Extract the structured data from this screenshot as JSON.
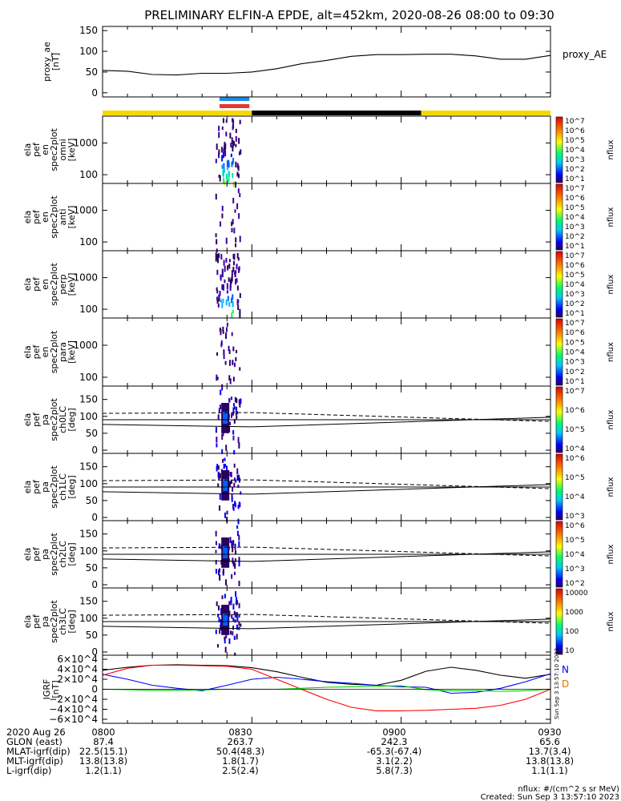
{
  "chart_data": [
    {
      "title": "PRELIMINARY ELFIN-A EPDE, alt=452km, 2020-08-26 08:00 to 09:30",
      "type": "line",
      "panels": [
        {
          "id": "proxy_ae",
          "type": "line",
          "ylabel": [
            "proxy_ae",
            "[nT]"
          ],
          "ylim": [
            -10,
            160
          ],
          "yticks": [
            "0",
            "50",
            "100",
            "150"
          ],
          "series": [
            {
              "name": "proxy_AE",
              "x_min": [
                0,
                5,
                10,
                15,
                20,
                25,
                30,
                35,
                40,
                45,
                50,
                55,
                60,
                65,
                70,
                75,
                80,
                85,
                90
              ],
              "y": [
                54,
                52,
                44,
                43,
                47,
                47,
                50,
                58,
                70,
                78,
                88,
                92,
                92,
                93,
                93,
                89,
                81,
                81,
                90
              ]
            }
          ]
        },
        {
          "id": "en_spec2plot_omni",
          "type": "heatmap",
          "ylabel": [
            "ela",
            "pef",
            "en",
            "spec2plot",
            "omni",
            "[keV]"
          ],
          "yticks": [
            "100",
            "1000"
          ],
          "colorbar": {
            "label": "nflux",
            "ticks": [
              "10^7",
              "10^6",
              "10^5",
              "10^4",
              "10^3",
              "10^2",
              "10^1"
            ]
          },
          "active_window_min": [
            22,
            26
          ]
        },
        {
          "id": "en_spec2plot_anti",
          "type": "heatmap",
          "ylabel": [
            "ela",
            "pef",
            "en",
            "spec2plot",
            "anti",
            "[keV]"
          ],
          "yticks": [
            "100",
            "1000"
          ],
          "colorbar": {
            "label": "nflux",
            "ticks": [
              "10^7",
              "10^6",
              "10^5",
              "10^4",
              "10^3",
              "10^2",
              "10^1"
            ]
          },
          "active_window_min": [
            22,
            26
          ]
        },
        {
          "id": "en_spec2plot_perp",
          "type": "heatmap",
          "ylabel": [
            "ela",
            "pef",
            "en",
            "spec2plot",
            "perp",
            "[keV]"
          ],
          "yticks": [
            "100",
            "1000"
          ],
          "colorbar": {
            "label": "nflux",
            "ticks": [
              "10^7",
              "10^6",
              "10^5",
              "10^4",
              "10^3",
              "10^2",
              "10^1"
            ]
          },
          "active_window_min": [
            22,
            26
          ]
        },
        {
          "id": "en_spec2plot_para",
          "type": "heatmap",
          "ylabel": [
            "ela",
            "pef",
            "en",
            "spec2plot",
            "para",
            "[keV]"
          ],
          "yticks": [
            "100",
            "1000"
          ],
          "colorbar": {
            "label": "nflux",
            "ticks": [
              "10^7",
              "10^6",
              "10^5",
              "10^4",
              "10^3",
              "10^2",
              "10^1"
            ]
          },
          "active_window_min": [
            22,
            26
          ]
        },
        {
          "id": "pa_spec2plot_ch0LC",
          "type": "heatmap",
          "ylabel": [
            "ela",
            "pef",
            "pa",
            "spec2plot",
            "ch0LC",
            "[deg]"
          ],
          "yticks": [
            "0",
            "50",
            "100",
            "150"
          ],
          "colorbar": {
            "label": "nflux",
            "ticks": [
              "10^7",
              "10^6",
              "10^5",
              "10^4"
            ]
          },
          "active_window_min": [
            22,
            26
          ]
        },
        {
          "id": "pa_spec2plot_ch1LC",
          "type": "heatmap",
          "ylabel": [
            "ela",
            "pef",
            "pa",
            "spec2plot",
            "ch1LC",
            "[deg]"
          ],
          "yticks": [
            "0",
            "50",
            "100",
            "150"
          ],
          "colorbar": {
            "label": "nflux",
            "ticks": [
              "10^6",
              "10^5",
              "10^4",
              "10^3"
            ]
          },
          "active_window_min": [
            22,
            26
          ]
        },
        {
          "id": "pa_spec2plot_ch2LC",
          "type": "heatmap",
          "ylabel": [
            "ela",
            "pef",
            "pa",
            "spec2plot",
            "ch2LC",
            "[deg]"
          ],
          "yticks": [
            "0",
            "50",
            "100",
            "150"
          ],
          "colorbar": {
            "label": "nflux",
            "ticks": [
              "10^6",
              "10^5",
              "10^4",
              "10^3",
              "10^2"
            ]
          },
          "active_window_min": [
            22,
            26
          ]
        },
        {
          "id": "pa_spec2plot_ch3LC",
          "type": "heatmap",
          "ylabel": [
            "ela",
            "pef",
            "pa",
            "spec2plot",
            "ch3LC",
            "[deg]"
          ],
          "yticks": [
            "0",
            "50",
            "100",
            "150"
          ],
          "colorbar": {
            "label": "nflux",
            "ticks": [
              "10000",
              "1000",
              "100",
              "10"
            ]
          },
          "active_window_min": [
            22,
            26
          ]
        },
        {
          "id": "igrf",
          "type": "line",
          "ylabel": [
            "IGRF",
            "[nT]"
          ],
          "ylim": [
            -68000,
            68000
          ],
          "yticks": [
            "6×10^4",
            "4×10^4",
            "2×10^4",
            "0",
            "−2×10^4",
            "−4×10^4",
            "−6×10^4"
          ],
          "legend": [
            "N",
            "D"
          ],
          "series": [
            {
              "name": "black",
              "color": "#000000",
              "x_min": [
                0,
                5,
                10,
                15,
                20,
                25,
                30,
                35,
                40,
                45,
                50,
                55,
                60,
                65,
                70,
                75,
                80,
                85,
                90
              ],
              "y": [
                38000,
                44000,
                48000,
                49000,
                48000,
                47000,
                43000,
                35000,
                24000,
                14000,
                10000,
                8000,
                18000,
                36000,
                44000,
                38000,
                28000,
                22000,
                30000
              ]
            },
            {
              "name": "N",
              "color": "#0000ff",
              "x_min": [
                0,
                5,
                10,
                15,
                20,
                25,
                30,
                35,
                40,
                45,
                50,
                55,
                60,
                65,
                70,
                75,
                80,
                85,
                90
              ],
              "y": [
                30000,
                20000,
                8000,
                2000,
                -3000,
                8000,
                20000,
                24000,
                20000,
                15000,
                12000,
                8000,
                5000,
                4000,
                -8000,
                -6000,
                2000,
                15000,
                31000
              ]
            },
            {
              "name": "D",
              "color": "#ff0000",
              "x_min": [
                0,
                5,
                10,
                15,
                20,
                25,
                30,
                35,
                40,
                45,
                50,
                55,
                60,
                65,
                70,
                75,
                80,
                85,
                90
              ],
              "y": [
                28000,
                42000,
                48000,
                48000,
                47000,
                46000,
                40000,
                20000,
                0,
                -20000,
                -36000,
                -43000,
                -43000,
                -42000,
                -40000,
                -38000,
                -32000,
                -20000,
                0
              ]
            },
            {
              "name": "green",
              "color": "#00cc00",
              "x_min": [
                0,
                5,
                10,
                15,
                20,
                25,
                30,
                35,
                40,
                45,
                50,
                55,
                60,
                65,
                70,
                75,
                80,
                85,
                90
              ],
              "y": [
                0,
                -1000,
                -2000,
                -2000,
                -1500,
                0,
                0,
                0,
                2000,
                4000,
                5000,
                6000,
                7000,
                -1000,
                -3000,
                -3000,
                -4000,
                -3000,
                0
              ]
            }
          ]
        }
      ],
      "xaxis": {
        "rows": [
          {
            "label": "2020 Aug 26",
            "values": [
              "0800",
              "0830",
              "0900",
              "0930"
            ]
          },
          {
            "label": "GLON (east)",
            "values": [
              "87.4",
              "263.7",
              "242.3",
              "65.6"
            ]
          },
          {
            "label": "MLAT-igrf(dip)",
            "values": [
              "22.5(15.1)",
              "50.4(48.3)",
              "-65.3(-67.4)",
              "13.7(3.4)"
            ]
          },
          {
            "label": "MLT-igrf(dip)",
            "values": [
              "13.8(13.8)",
              "1.8(1.7)",
              "3.1(2.2)",
              "13.8(13.8)"
            ]
          },
          {
            "label": "L-igrf(dip)",
            "values": [
              "1.2(1.1)",
              "2.5(2.4)",
              "5.8(7.3)",
              "1.1(1.1)"
            ]
          }
        ]
      }
    }
  ],
  "footer": {
    "units": "nflux: #/(cm^2 s sr MeV)",
    "created": "Created: Sun Sep  3 13:57:10 2023",
    "side_stamp": "Sun Sep  3 13:57:10 2023"
  },
  "colors": {
    "yellow_bar": "#f5d800",
    "black_bar": "#000000",
    "blue_mark": "#1e88e5",
    "red_mark": "#e53935"
  }
}
